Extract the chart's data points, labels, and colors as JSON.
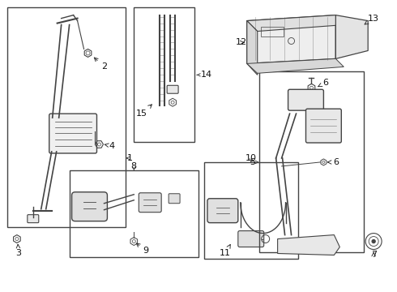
{
  "bg_color": "#ffffff",
  "line_color": "#444444",
  "fig_width": 4.9,
  "fig_height": 3.6,
  "dpi": 100,
  "font_size": 7.0,
  "label_font_size": 8.0
}
